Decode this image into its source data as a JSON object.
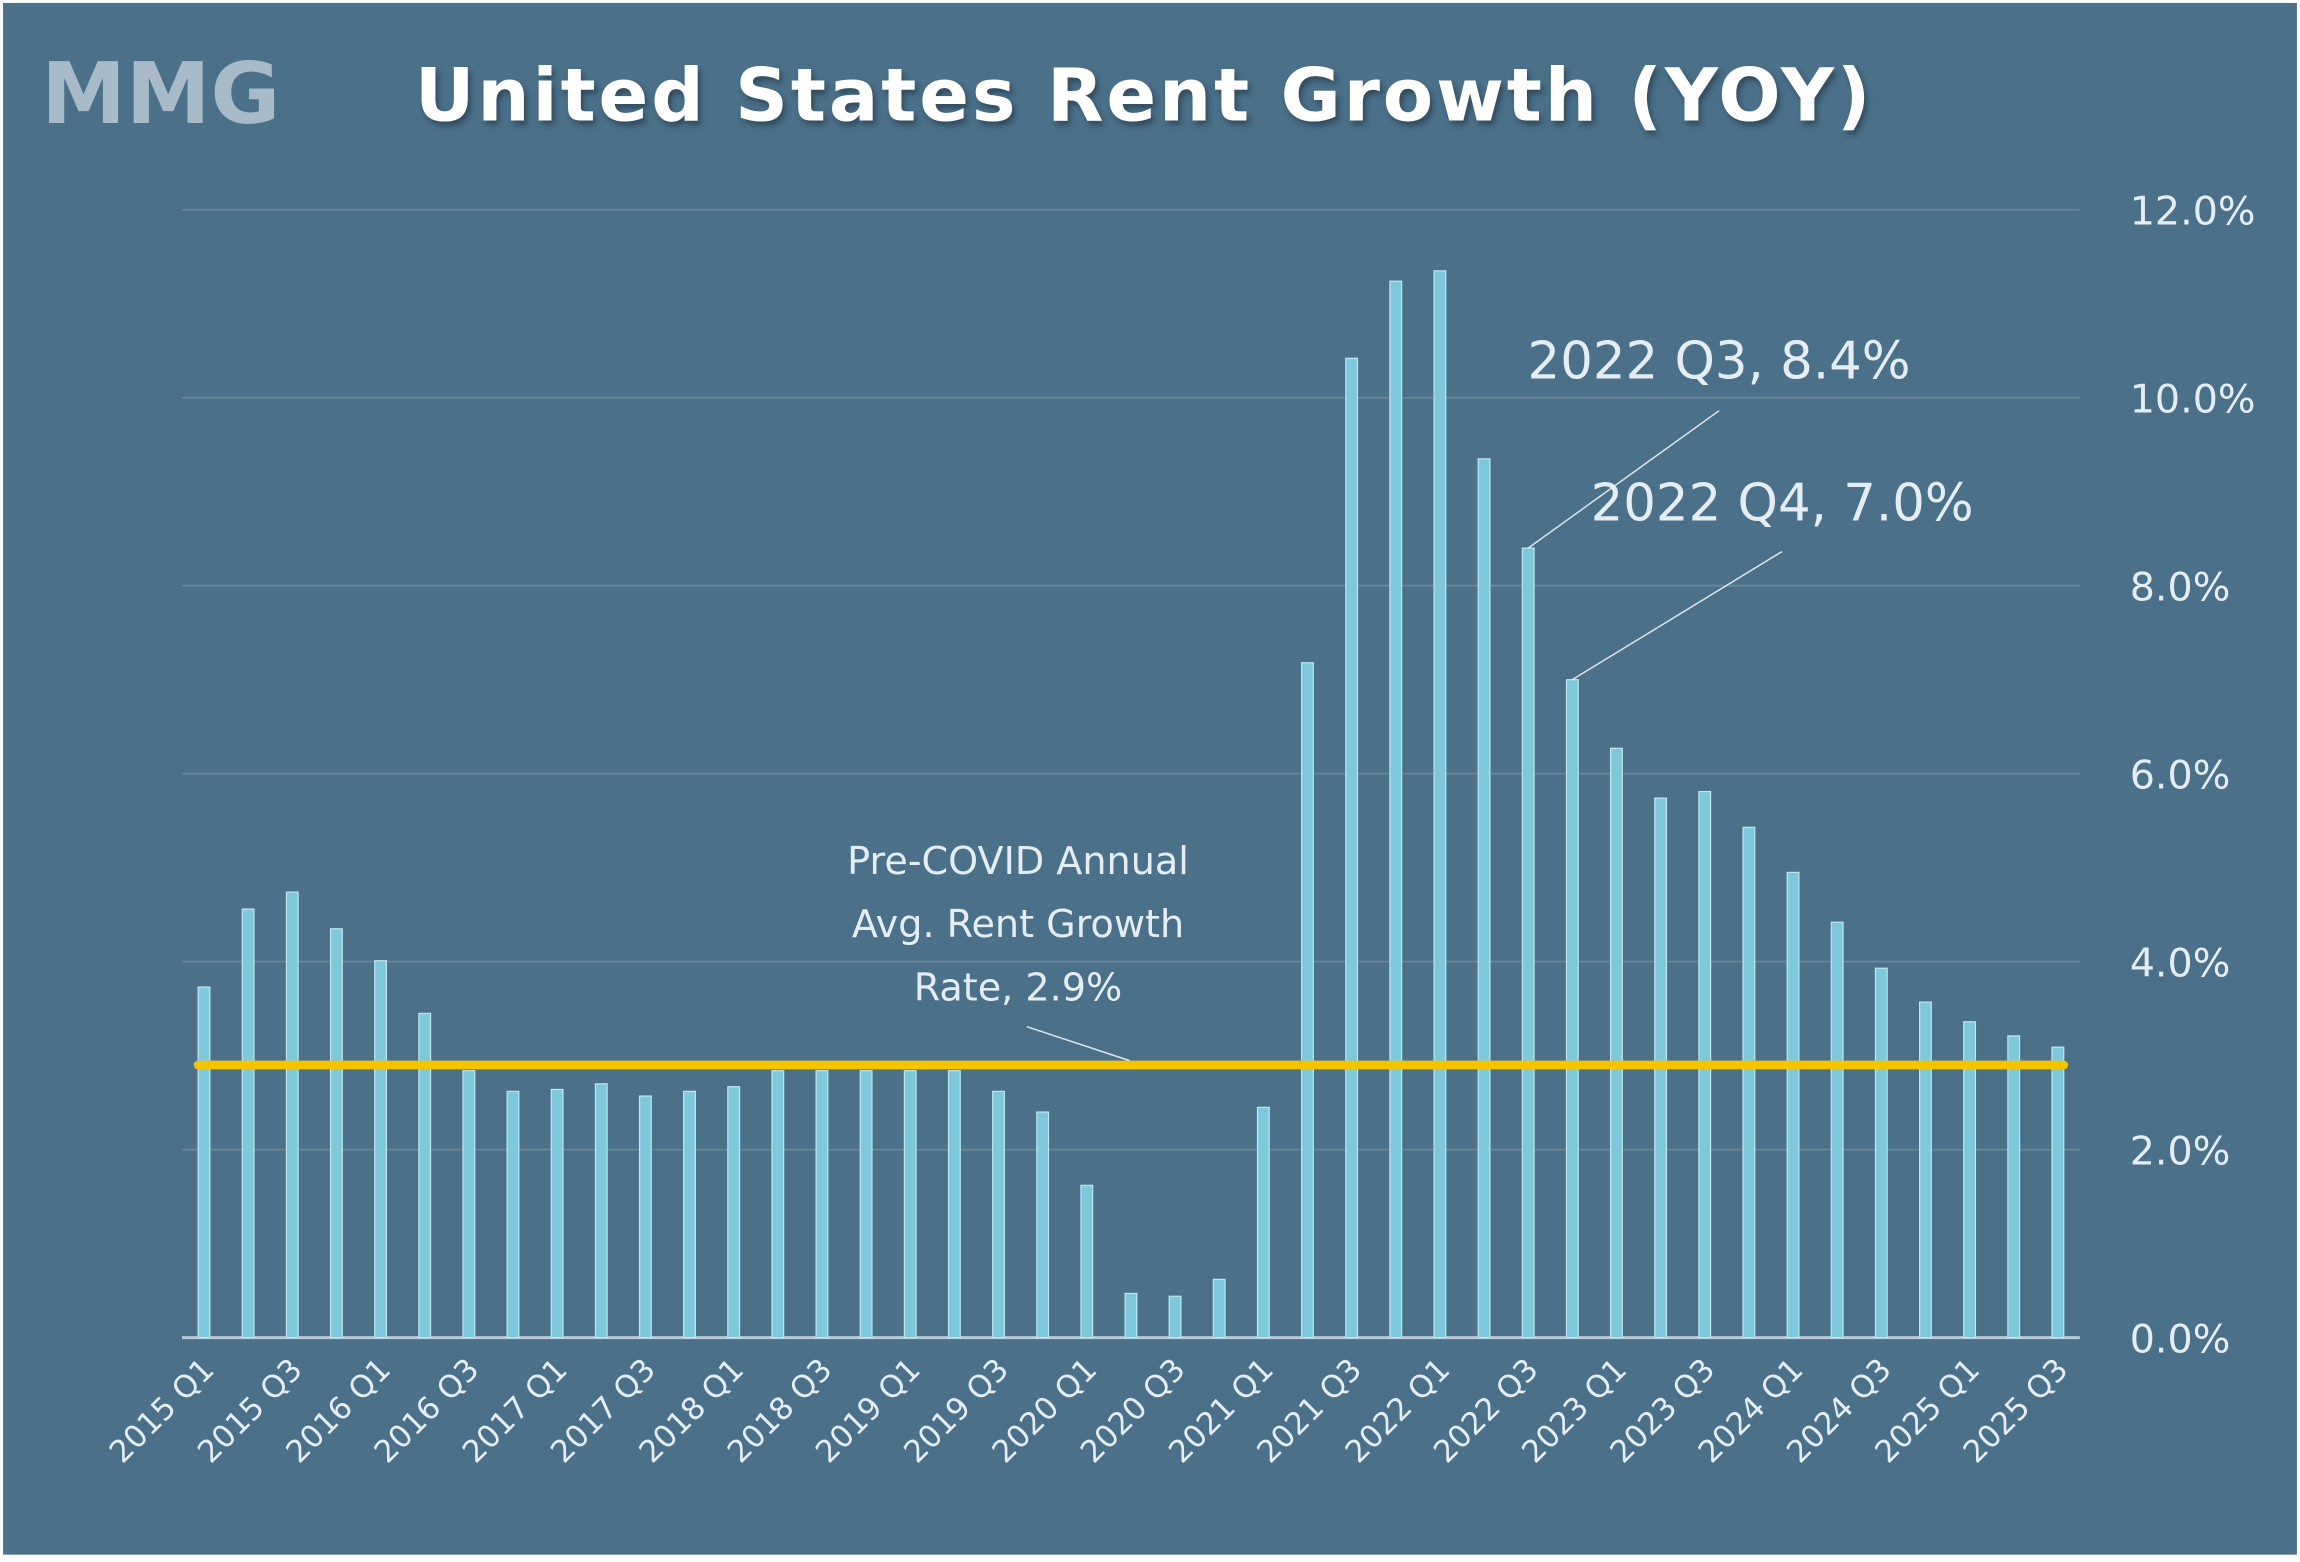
{
  "chart_data": {
    "type": "bar",
    "title": "United States Rent Growth (YOY)",
    "logo": "MMG",
    "categories": [
      "2015 Q1",
      null,
      "2015 Q3",
      null,
      "2016 Q1",
      null,
      "2016 Q3",
      null,
      "2017 Q1",
      null,
      "2017 Q3",
      null,
      "2018 Q1",
      null,
      "2018 Q3",
      null,
      "2019 Q1",
      null,
      "2019 Q3",
      null,
      "2020 Q1",
      null,
      "2020 Q3",
      null,
      "2021 Q1",
      null,
      "2021 Q3",
      null,
      "2022 Q1",
      null,
      "2022 Q3",
      null,
      "2023 Q1",
      null,
      "2023 Q3",
      null,
      "2024 Q1",
      null,
      "2024 Q3",
      null,
      "2025 Q1",
      null,
      "2025 Q3"
    ],
    "values": [
      3.73,
      4.56,
      4.74,
      4.35,
      4.01,
      3.45,
      2.84,
      2.62,
      2.64,
      2.7,
      2.57,
      2.62,
      2.67,
      2.84,
      2.84,
      2.84,
      2.84,
      2.84,
      2.62,
      2.4,
      1.62,
      0.47,
      0.44,
      0.62,
      2.45,
      7.18,
      10.42,
      11.24,
      11.35,
      9.35,
      8.4,
      7.0,
      6.27,
      5.74,
      5.81,
      5.43,
      4.95,
      4.42,
      3.93,
      3.57,
      3.36,
      3.21,
      3.09
    ],
    "color": "#7ec8dc",
    "ylim": [
      0,
      12
    ],
    "yticks": [
      {
        "value": 0,
        "label": "0.0%"
      },
      {
        "value": 2,
        "label": "2.0%"
      },
      {
        "value": 4,
        "label": "4.0%"
      },
      {
        "value": 6,
        "label": "6.0%"
      },
      {
        "value": 8,
        "label": "8.0%"
      },
      {
        "value": 10,
        "label": "10.0%"
      },
      {
        "value": 12,
        "label": "12.0%"
      }
    ],
    "grid": true,
    "reference_line": {
      "value": 2.9,
      "color": "#f5c400",
      "label": [
        "Pre-COVID Annual",
        "Avg. Rent Growth",
        "Rate, 2.9%"
      ]
    },
    "annotations": [
      "2022 Q3, 8.4%",
      "2022 Q4, 7.0%"
    ]
  }
}
